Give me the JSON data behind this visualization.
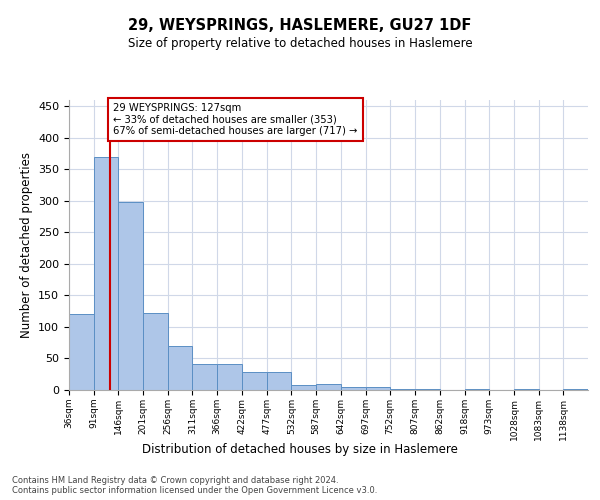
{
  "title1": "29, WEYSPRINGS, HASLEMERE, GU27 1DF",
  "title2": "Size of property relative to detached houses in Haslemere",
  "xlabel": "Distribution of detached houses by size in Haslemere",
  "ylabel": "Number of detached properties",
  "bin_edges": [
    36,
    91,
    146,
    201,
    256,
    311,
    366,
    422,
    477,
    532,
    587,
    642,
    697,
    752,
    807,
    862,
    918,
    973,
    1028,
    1083,
    1138,
    1193
  ],
  "bin_labels": [
    "36sqm",
    "91sqm",
    "146sqm",
    "201sqm",
    "256sqm",
    "311sqm",
    "366sqm",
    "422sqm",
    "477sqm",
    "532sqm",
    "587sqm",
    "642sqm",
    "697sqm",
    "752sqm",
    "807sqm",
    "862sqm",
    "918sqm",
    "973sqm",
    "1028sqm",
    "1083sqm",
    "1138sqm"
  ],
  "counts": [
    120,
    370,
    298,
    122,
    70,
    42,
    42,
    28,
    28,
    8,
    10,
    5,
    5,
    2,
    2,
    0,
    2,
    0,
    2,
    0,
    2
  ],
  "bar_color": "#aec6e8",
  "bar_edge_color": "#5b8fc4",
  "property_size": 127,
  "red_line_color": "#cc0000",
  "annotation_text": "29 WEYSPRINGS: 127sqm\n← 33% of detached houses are smaller (353)\n67% of semi-detached houses are larger (717) →",
  "annotation_box_color": "#ffffff",
  "annotation_box_edge_color": "#cc0000",
  "ylim": [
    0,
    460
  ],
  "yticks": [
    0,
    50,
    100,
    150,
    200,
    250,
    300,
    350,
    400,
    450
  ],
  "footer_text": "Contains HM Land Registry data © Crown copyright and database right 2024.\nContains public sector information licensed under the Open Government Licence v3.0.",
  "background_color": "#ffffff",
  "grid_color": "#d0d8e8"
}
